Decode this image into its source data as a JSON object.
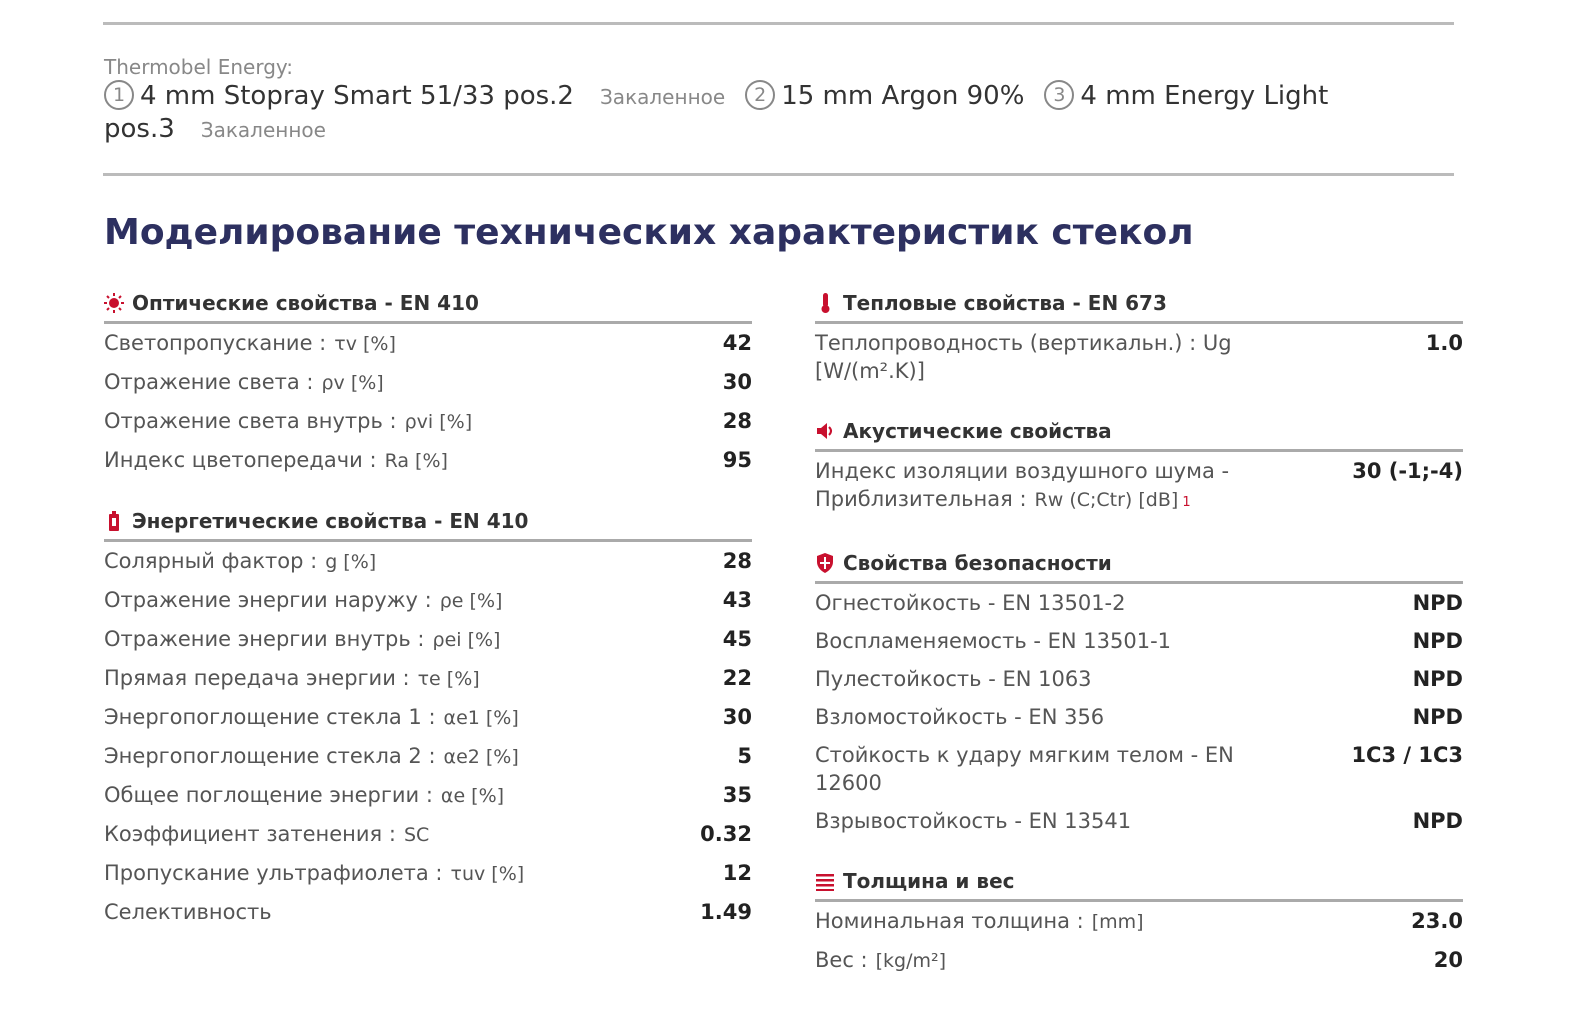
{
  "composition": {
    "label": "Thermobel Energy:",
    "items": [
      {
        "num": "1",
        "text": "4 mm Stopray Smart 51/33 pos.2",
        "note": "Закаленное"
      },
      {
        "num": "2",
        "text": "15 mm Argon 90%"
      },
      {
        "num": "3",
        "text": "4 mm Energy Light pos.3",
        "note": "Закаленное"
      }
    ]
  },
  "title": "Моделирование технических характеристик стекол",
  "columns": [
    [
      {
        "icon": "sun",
        "title": "Оптические свойства - EN 410",
        "rows": [
          {
            "label": "Светопропускание :",
            "param": "τv [%]",
            "value": "42"
          },
          {
            "label": "Отражение света :",
            "param": "ρv [%]",
            "value": "30"
          },
          {
            "label": "Отражение света внутрь :",
            "param": "ρvi [%]",
            "value": "28"
          },
          {
            "label": "Индекс цветопередачи :",
            "param": "Ra [%]",
            "value": "95"
          }
        ]
      },
      {
        "icon": "battery",
        "title": "Энергетические свойства - EN 410",
        "rows": [
          {
            "label": "Солярный фактор :",
            "param": "g [%]",
            "value": "28"
          },
          {
            "label": "Отражение энергии наружу :",
            "param": "ρe [%]",
            "value": "43"
          },
          {
            "label": "Отражение энергии внутрь :",
            "param": "ρei [%]",
            "value": "45"
          },
          {
            "label": "Прямая передача энергии :",
            "param": "τe [%]",
            "value": "22"
          },
          {
            "label": "Энергопоглощение стекла 1 :",
            "param": "αe1 [%]",
            "value": "30"
          },
          {
            "label": "Энергопоглощение стекла 2 :",
            "param": "αe2 [%]",
            "value": "5"
          },
          {
            "label": "Общее поглощение энергии :",
            "param": "αe [%]",
            "value": "35"
          },
          {
            "label": "Коэффициент затенения :",
            "param": "SC",
            "value": "0.32"
          },
          {
            "label": "Пропускание ультрафиолета :",
            "param": "τuv [%]",
            "value": "12"
          },
          {
            "label": "Селективность",
            "value": "1.49"
          }
        ]
      }
    ],
    [
      {
        "icon": "thermo",
        "title": "Тепловые свойства - EN 673",
        "rows": [
          {
            "label": "Теплопроводность (вертикальн.) : Ug [W/(m².K)]",
            "value": "1.0"
          }
        ]
      },
      {
        "icon": "speaker",
        "title": "Акустические свойства",
        "rows": [
          {
            "label": "Индекс изоляции воздушного шума - Приблизительная :",
            "param": "Rw (C;Ctr) [dB]",
            "note": "1",
            "value": "30 (-1;-4)"
          }
        ]
      },
      {
        "icon": "shield",
        "title": "Свойства безопасности",
        "rows": [
          {
            "label": "Огнестойкость - EN 13501-2",
            "value": "NPD"
          },
          {
            "label": "Воспламеняемость - EN 13501-1",
            "value": "NPD"
          },
          {
            "label": "Пулестойкость - EN 1063",
            "value": "NPD"
          },
          {
            "label": "Взломостойкость - EN 356",
            "value": "NPD"
          },
          {
            "label": "Стойкость к удару мягким телом - EN 12600",
            "value": "1C3 / 1C3"
          },
          {
            "label": "Взрывостойкость - EN 13541",
            "value": "NPD"
          }
        ]
      },
      {
        "icon": "lines",
        "title": "Толщина и вес",
        "rows": [
          {
            "label": "Номинальная толщина :",
            "param": "[mm]",
            "value": "23.0"
          },
          {
            "label": "Вес :",
            "param": "[kg/m²]",
            "value": "20"
          }
        ]
      }
    ]
  ]
}
